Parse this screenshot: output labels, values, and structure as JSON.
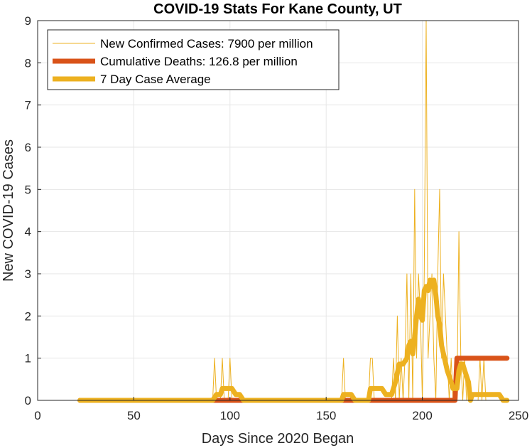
{
  "chart_data": {
    "type": "line",
    "title": "COVID-19 Stats For Kane County, UT",
    "xlabel": "Days Since 2020 Began",
    "ylabel": "New COVID-19 Cases",
    "xlim": [
      0,
      250
    ],
    "ylim": [
      0,
      9
    ],
    "xticks": [
      0,
      50,
      100,
      150,
      200,
      250
    ],
    "yticks": [
      0,
      1,
      2,
      3,
      4,
      5,
      6,
      7,
      8,
      9
    ],
    "grid": true,
    "legend_position": "top-left",
    "colors": {
      "new_cases": "#EDB120",
      "deaths": "#D95319",
      "average": "#EDB120"
    },
    "series": [
      {
        "name": "New Confirmed Cases: 7900 per million",
        "style": "thin",
        "x": [
          22,
          91,
          92,
          93,
          94,
          95,
          96,
          97,
          98,
          99,
          100,
          101,
          102,
          157,
          158,
          159,
          160,
          161,
          172,
          173,
          174,
          175,
          176,
          184,
          185,
          186,
          187,
          188,
          189,
          190,
          191,
          192,
          193,
          194,
          195,
          196,
          197,
          198,
          199,
          200,
          201,
          202,
          203,
          204,
          205,
          206,
          207,
          208,
          209,
          210,
          211,
          212,
          213,
          214,
          215,
          216,
          217,
          218,
          219,
          220,
          221,
          222,
          223,
          224,
          229,
          230,
          231,
          232,
          233,
          244
        ],
        "y": [
          0,
          0,
          1,
          0,
          0,
          0,
          1,
          0,
          0,
          0,
          1,
          0,
          0,
          0,
          0,
          1,
          0,
          0,
          0,
          1,
          1,
          0,
          0,
          0,
          1,
          0,
          2,
          0,
          1,
          0,
          1,
          3,
          0,
          3,
          0,
          5,
          1,
          3,
          2,
          0,
          3,
          9,
          1,
          2,
          3,
          1,
          0,
          3,
          5,
          1,
          3,
          2,
          1,
          0,
          1,
          0,
          0,
          0,
          4,
          1,
          0,
          1,
          0,
          0,
          0,
          1,
          0,
          1,
          0,
          0
        ]
      },
      {
        "name": "Cumulative Deaths: 126.8 per million",
        "style": "thick",
        "x": [
          22,
          217,
          218,
          244
        ],
        "y": [
          0,
          0,
          1,
          1
        ]
      },
      {
        "name": "7 Day Case Average",
        "style": "thick",
        "x": [
          22,
          91,
          93,
          95,
          96,
          99,
          101,
          103,
          105,
          107,
          158,
          159,
          161,
          163,
          165,
          172,
          173,
          176,
          179,
          181,
          184,
          186,
          188,
          190,
          192,
          193,
          194,
          195,
          196,
          197,
          198,
          199,
          200,
          201,
          202,
          203,
          204,
          205,
          206,
          207,
          208,
          209,
          210,
          211,
          212,
          213,
          214,
          215,
          216,
          217,
          218,
          219,
          220,
          221,
          222,
          223,
          224,
          225,
          226,
          227,
          228,
          230,
          235,
          240,
          242,
          244
        ],
        "y": [
          0,
          0,
          0.14,
          0.14,
          0.28,
          0.28,
          0.28,
          0.14,
          0.14,
          0,
          0,
          0.14,
          0.14,
          0.14,
          0,
          0,
          0.28,
          0.28,
          0.28,
          0.14,
          0.14,
          0.43,
          0.86,
          0.86,
          1,
          1.3,
          1.4,
          1.1,
          1.5,
          2.0,
          2.4,
          2.0,
          1.9,
          2.6,
          2.7,
          2.6,
          2.85,
          2.7,
          2.85,
          2.5,
          2.0,
          1.8,
          1.3,
          1.1,
          0.9,
          0.7,
          0.57,
          0.43,
          0.28,
          0.28,
          0.28,
          0.71,
          0.86,
          0.86,
          0.71,
          0.57,
          0.43,
          0,
          0.14,
          0.14,
          0.14,
          0.14,
          0.14,
          0.14,
          0,
          0
        ]
      }
    ]
  }
}
